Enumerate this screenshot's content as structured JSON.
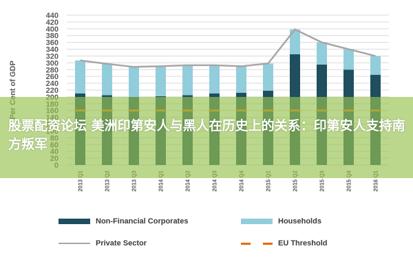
{
  "chart_data": {
    "type": "bar",
    "stacked": true,
    "categories": [
      "2013 Q1",
      "2013 Q2",
      "2013 Q3",
      "2014 Q1",
      "2014 Q2",
      "2014 Q3",
      "2014 Q4",
      "2015 Q1",
      "2015 Q2",
      "2015 Q3",
      "2015 Q4",
      "2016 Q1"
    ],
    "series": [
      {
        "name": "Non-Financial Corporates",
        "kind": "bar",
        "color": "#1f4e5f",
        "values": [
          210,
          205,
          200,
          202,
          205,
          210,
          212,
          218,
          325,
          295,
          280,
          265
        ]
      },
      {
        "name": "Households",
        "kind": "bar",
        "color": "#92cddc",
        "values": [
          97,
          92,
          88,
          88,
          88,
          83,
          78,
          80,
          73,
          65,
          60,
          55
        ]
      },
      {
        "name": "Private Sector",
        "kind": "line",
        "color": "#a6a6a6",
        "values": [
          307,
          297,
          288,
          290,
          293,
          293,
          290,
          298,
          398,
          360,
          340,
          320
        ]
      },
      {
        "name": "EU Threshold",
        "kind": "dashed-line",
        "color": "#e36c09",
        "values": [
          160,
          160,
          160,
          160,
          160,
          160,
          160,
          160,
          160,
          160,
          160,
          160
        ]
      }
    ],
    "xlabel": "",
    "ylabel": "Per Cent of GDP",
    "yticks": [
      0,
      20,
      40,
      60,
      80,
      100,
      120,
      140,
      160,
      180,
      200,
      220,
      240,
      260,
      280,
      300,
      320,
      340,
      360,
      380,
      400,
      420,
      440
    ],
    "ylim": [
      0,
      440
    ],
    "grid": true,
    "legend_position": "bottom"
  },
  "banner": {
    "text": "股票配资论坛 美洲印第安人与黑人在历史上的关系：印第安人支持南方叛军"
  },
  "colors": {
    "banner_overlay": "#96c350",
    "axis_text": "#595959",
    "grid": "#d9d9d9"
  }
}
